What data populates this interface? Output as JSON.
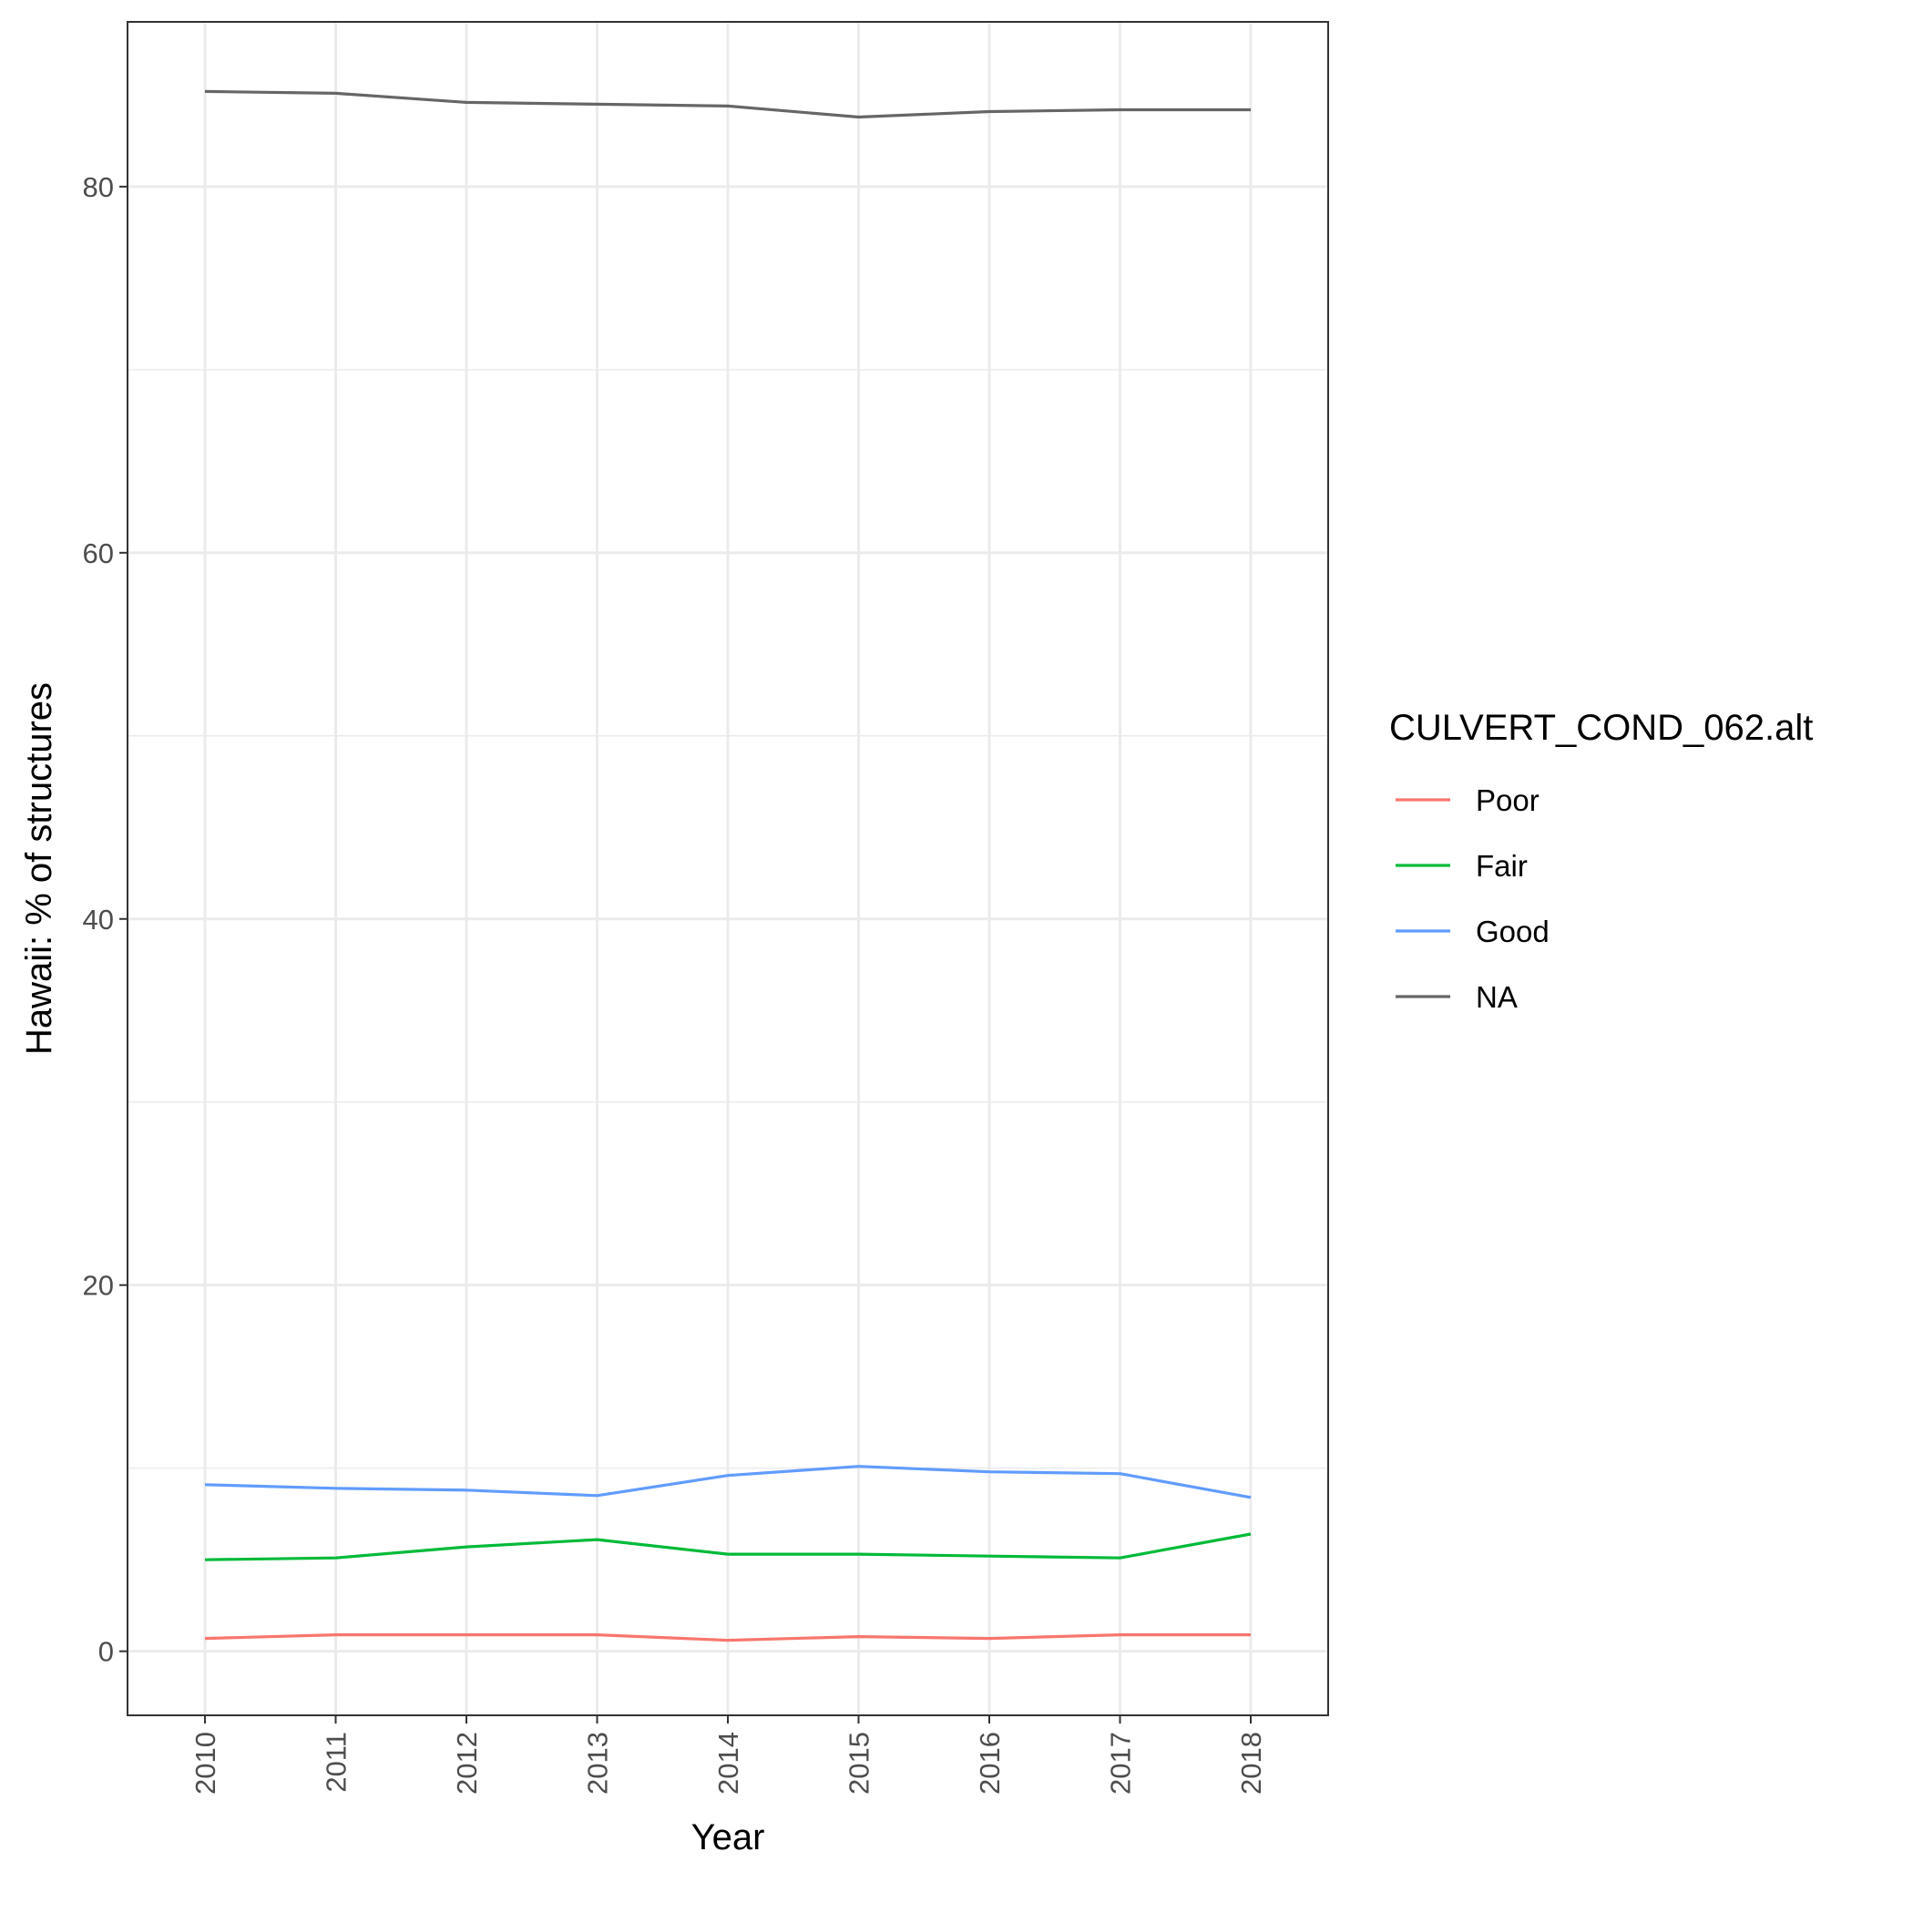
{
  "chart_data": {
    "type": "line",
    "x": [
      2010,
      2011,
      2012,
      2013,
      2014,
      2015,
      2016,
      2017,
      2018
    ],
    "series": [
      {
        "name": "Poor",
        "color": "#F8766D",
        "values": [
          0.7,
          0.9,
          0.9,
          0.9,
          0.6,
          0.8,
          0.7,
          0.9,
          0.9
        ]
      },
      {
        "name": "Fair",
        "color": "#00BA38",
        "values": [
          5.0,
          5.1,
          5.7,
          6.1,
          5.3,
          5.3,
          5.2,
          5.1,
          6.4
        ]
      },
      {
        "name": "Good",
        "color": "#619CFF",
        "values": [
          9.1,
          8.9,
          8.8,
          8.5,
          9.6,
          10.1,
          9.8,
          9.7,
          8.4
        ]
      },
      {
        "name": "NA",
        "color": "#666666",
        "values": [
          85.2,
          85.1,
          84.6,
          84.5,
          84.4,
          83.8,
          84.1,
          84.2,
          84.2
        ]
      }
    ],
    "xlabel": "Year",
    "ylabel": "Hawaii: % of structures",
    "legend_title": "CULVERT_COND_062.alt",
    "legend_position": "right",
    "ylim": [
      -3.5,
      89
    ],
    "yticks": [
      0,
      20,
      40,
      60,
      80
    ],
    "grid": true
  }
}
